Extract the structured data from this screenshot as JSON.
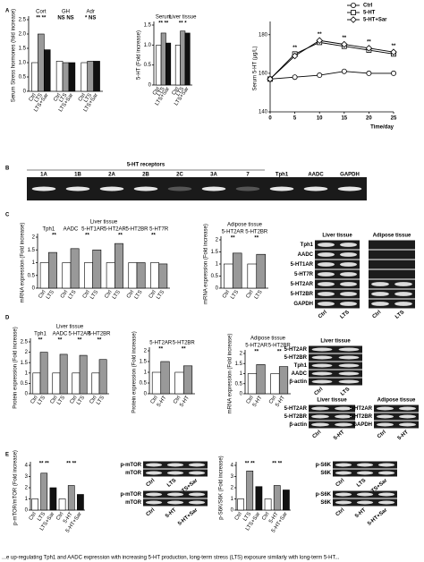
{
  "panel_labels": [
    "A",
    "B",
    "C",
    "D",
    "E"
  ],
  "chart_data": [
    {
      "type": "bar",
      "ylabel": "Serum Stress hormones (fold increase)",
      "categories": [
        "Cort",
        "GH",
        "Adr"
      ],
      "series": [
        {
          "name": "Ctrl",
          "color": "#ffffff",
          "values": [
            1.0,
            1.05,
            1.0
          ]
        },
        {
          "name": "LTS",
          "color": "#999999",
          "values": [
            2.0,
            1.0,
            1.05
          ]
        },
        {
          "name": "LTS+Sar",
          "color": "#111111",
          "values": [
            1.45,
            1.0,
            1.05
          ]
        }
      ],
      "annotations": [
        "** **",
        "NS NS",
        "* NS"
      ],
      "ylim": [
        0,
        2.5
      ],
      "yticks": [
        0,
        0.5,
        {
          "value": 1,
          "label": "1.0"
        },
        1.5,
        {
          "value": 2,
          "label": "2.0"
        },
        2.5
      ]
    },
    {
      "type": "bar",
      "ylabel": "5-HT (Fold increase)",
      "categories": [
        "Serum",
        "Liver tissue"
      ],
      "series": [
        {
          "name": "Ctrl",
          "color": "#ffffff",
          "values": [
            1.0,
            1.0
          ]
        },
        {
          "name": "LTS",
          "color": "#999999",
          "values": [
            1.3,
            1.35
          ]
        },
        {
          "name": "LTS+Sar",
          "color": "#111111",
          "values": [
            1.05,
            1.3
          ]
        }
      ],
      "annotations": [
        "** **",
        "** *"
      ],
      "ylim": [
        0,
        1.5
      ],
      "yticks": [
        0,
        0.5,
        {
          "value": 1,
          "label": "1.0"
        },
        1.5
      ]
    },
    {
      "type": "line",
      "ylabel": "Serum 5-HT (μg/L)",
      "xlabel": "Time/day",
      "x": [
        0,
        5,
        10,
        15,
        20,
        25
      ],
      "series": [
        {
          "name": "Ctrl",
          "color": "#000000",
          "marker": "circle",
          "values": [
            157,
            158,
            159,
            161,
            160,
            160
          ]
        },
        {
          "name": "5-HT",
          "color": "#000000",
          "marker": "square",
          "values": [
            157,
            170,
            176,
            174,
            172,
            170
          ]
        },
        {
          "name": "5-HT+Sar",
          "color": "#000000",
          "marker": "diamond",
          "values": [
            157,
            169,
            177,
            175,
            173,
            171
          ]
        }
      ],
      "annotations": [
        "**",
        "**",
        "**",
        "**",
        "**"
      ],
      "legend": "upper right",
      "xlim": [
        0,
        25
      ],
      "xticks": [
        0,
        5,
        10,
        15,
        20,
        25
      ],
      "ylim": [
        140,
        185
      ],
      "yticks": [
        140,
        160,
        180
      ]
    },
    {
      "type": "bar",
      "title": "Liver tissue",
      "ylabel": "mRNA expression (Fold increase)",
      "categories": [
        "Tph1",
        "AADC",
        "5-HT1AR",
        "5-HT2AR",
        "5-HT2BR",
        "5-HT7R"
      ],
      "series": [
        {
          "name": "Ctrl",
          "color": "#ffffff",
          "values": [
            1.0,
            1.0,
            1.0,
            1.0,
            1.0,
            1.0
          ]
        },
        {
          "name": "LTS",
          "color": "#999999",
          "values": [
            1.4,
            1.55,
            1.5,
            1.75,
            1.0,
            0.95
          ]
        }
      ],
      "annotations": [
        "**",
        "**",
        "**",
        "**"
      ],
      "ylim": [
        0,
        2
      ],
      "yticks": [
        0,
        0.5,
        1,
        1.5,
        2
      ]
    },
    {
      "type": "bar",
      "title": "Adipose tissue",
      "ylabel": "mRNA expression (Fold increase)",
      "categories": [
        "5-HT2AR",
        "5-HT2BR"
      ],
      "series": [
        {
          "name": "Ctrl",
          "color": "#ffffff",
          "values": [
            1.0,
            1.0
          ]
        },
        {
          "name": "LTS",
          "color": "#999999",
          "values": [
            1.45,
            1.4
          ]
        }
      ],
      "annotations": [
        "**",
        "**"
      ],
      "ylim": [
        0,
        2
      ],
      "yticks": [
        0,
        0.5,
        1,
        1.5,
        2
      ]
    },
    {
      "type": "bar",
      "title": "Liver tissue",
      "ylabel": "Protein expression (Fold increase)",
      "categories": [
        "Tph1",
        "AADC",
        "5-HT2AR",
        "5-HT2BR"
      ],
      "series": [
        {
          "name": "Ctrl",
          "color": "#ffffff",
          "values": [
            1.0,
            1.0,
            1.0,
            1.0
          ]
        },
        {
          "name": "LTS",
          "color": "#999999",
          "values": [
            2.0,
            1.9,
            1.85,
            1.65
          ]
        }
      ],
      "annotations": [
        "**",
        "**",
        "**",
        "**"
      ],
      "ylim": [
        0,
        2.5
      ],
      "yticks": [
        0,
        0.5,
        1,
        1.5,
        2,
        2.5
      ]
    },
    {
      "type": "bar",
      "ylabel": "Protein expression (Fold increase)",
      "categories": [
        "5-HT2AR",
        "5-HT2BR"
      ],
      "series": [
        {
          "name": "Ctrl",
          "color": "#ffffff",
          "values": [
            1.0,
            1.0
          ]
        },
        {
          "name": "5-HT",
          "color": "#999999",
          "values": [
            1.5,
            1.3
          ]
        }
      ],
      "annotations": [
        "**",
        "**"
      ],
      "ylim": [
        0,
        2
      ],
      "yticks": [
        0,
        0.5,
        1,
        1.5,
        2
      ]
    },
    {
      "type": "bar",
      "title": "Adipose tissue",
      "ylabel": "mRNA expression (Fold increase)",
      "categories": [
        "5-HT2AR",
        "5-HT2BR"
      ],
      "series": [
        {
          "name": "Ctrl",
          "color": "#ffffff",
          "values": [
            1.0,
            1.0
          ]
        },
        {
          "name": "5-HT",
          "color": "#999999",
          "values": [
            1.45,
            1.35
          ]
        }
      ],
      "annotations": [
        "**",
        "**"
      ],
      "ylim": [
        0,
        2
      ],
      "yticks": [
        0,
        0.5,
        1,
        1.5,
        2
      ]
    },
    {
      "type": "bar",
      "ylabel": "p-mTOR/mTOR (Fold increase)",
      "categories": [
        "Ctrl",
        "LTS",
        "LTS+Sar",
        "Ctrl",
        "5-HT",
        "5-HT+Sar"
      ],
      "values": [
        1.0,
        3.3,
        2.0,
        1.0,
        2.2,
        1.4
      ],
      "colors": [
        "#ffffff",
        "#999999",
        "#111111",
        "#ffffff",
        "#999999",
        "#111111"
      ],
      "annotations": [
        "** **",
        "** **"
      ],
      "ylim": [
        0,
        4
      ],
      "yticks": [
        0,
        1,
        2,
        3,
        4
      ]
    },
    {
      "type": "bar",
      "ylabel": "p-S6K/S6K (Fold increase)",
      "categories": [
        "Ctrl",
        "LTS",
        "LTS+Sar",
        "Ctrl",
        "5-HT",
        "5-HT+Sar"
      ],
      "values": [
        1.0,
        3.5,
        2.1,
        1.0,
        2.2,
        1.8
      ],
      "colors": [
        "#ffffff",
        "#999999",
        "#111111",
        "#ffffff",
        "#999999",
        "#111111"
      ],
      "annotations": [
        "** **",
        "** **"
      ],
      "ylim": [
        0,
        4
      ],
      "yticks": [
        0,
        1,
        2,
        3,
        4
      ]
    }
  ],
  "gels": [
    {
      "title": "5-HT receptors",
      "lanes": [
        "1A",
        "1B",
        "2A",
        "2B",
        "2C",
        "3A",
        "7",
        "Tph1",
        "AADC",
        "GAPDH"
      ]
    },
    {
      "title": "Liver tissue",
      "rows": [
        "Tph1",
        "AADC",
        "5-HT1AR",
        "5-HT7R",
        "5-HT2AR",
        "5-HT2BR",
        "GAPDH"
      ],
      "lanes": [
        "Ctrl",
        "LTS"
      ]
    },
    {
      "title": "Adipose tissue",
      "lanes": [
        "Ctrl",
        "LTS"
      ]
    },
    {
      "title": "Liver tissue",
      "rows": [
        "5-HT2AR",
        "5-HT2BR",
        "Tph1",
        "AADC",
        "β-actin"
      ],
      "lanes": [
        "Ctrl",
        "LTS"
      ]
    },
    {
      "title": "Liver tissue",
      "rows": [
        "5-HT2AR",
        "5-HT2BR",
        "β-actin"
      ],
      "lanes": [
        "Ctrl",
        "5-HT"
      ]
    },
    {
      "title": "Adipose tissue",
      "rows": [
        "5-HT2AR",
        "5-HT2BR",
        "GAPDH"
      ],
      "lanes": [
        "Ctrl",
        "5-HT"
      ]
    },
    {
      "rows": [
        "p-mTOR",
        "mTOR"
      ],
      "lanes": [
        "Ctrl",
        "LTS",
        "LTS+Sar"
      ]
    },
    {
      "rows": [
        "p-mTOR",
        "mTOR"
      ],
      "lanes": [
        "Ctrl",
        "5-HT",
        "5-HT+Sar"
      ]
    },
    {
      "rows": [
        "p-S6K",
        "S6K"
      ],
      "lanes": [
        "Ctrl",
        "LTS",
        "LTS+Sar"
      ]
    },
    {
      "rows": [
        "p-S6K",
        "S6K"
      ],
      "lanes": [
        "Ctrl",
        "5-HT",
        "5-HT+Sar"
      ]
    }
  ],
  "caption": "...e up-regulating Tph1 and AADC expression with increasing 5-HT production, long-term stress (LTS) exposure similarly with long-term 5-HT..."
}
